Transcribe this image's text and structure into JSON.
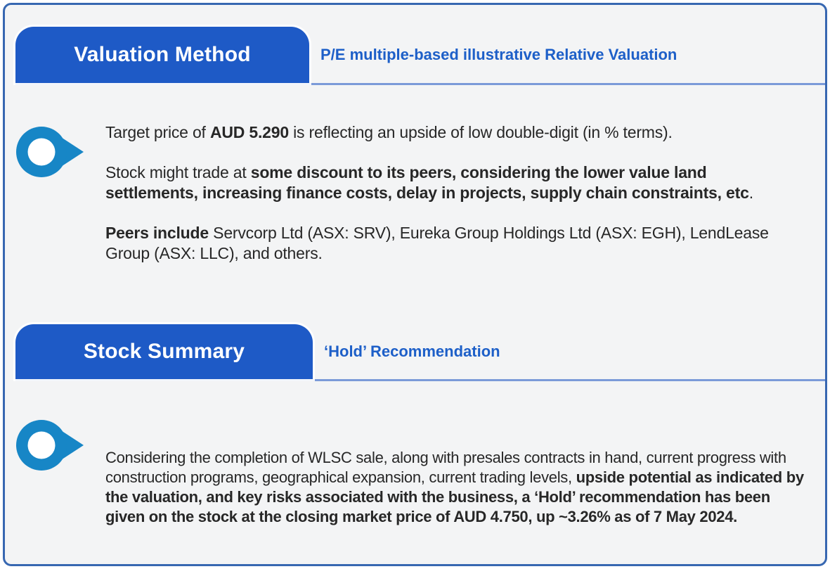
{
  "colors": {
    "frame_border": "#3767b1",
    "panel_bg": "#f3f4f5",
    "tab_bg": "#1e5ac6",
    "tab_text": "#ffffff",
    "subtitle_text": "#1d5fc8",
    "divider": "#7b9ad8",
    "icon_blue": "#1786c6",
    "body_text": "#272727"
  },
  "sections": [
    {
      "tab_label": "Valuation Method",
      "subtitle": "P/E multiple-based illustrative Relative Valuation",
      "icon": "location-pointer-icon",
      "paragraphs": [
        [
          {
            "t": "Target price of ",
            "b": false
          },
          {
            "t": "AUD 5.290",
            "b": true
          },
          {
            "t": " is reflecting an upside of low double-digit (in % terms).",
            "b": false
          }
        ],
        [
          {
            "t": "Stock might trade at ",
            "b": false
          },
          {
            "t": "some discount to its peers, considering the lower value land settlements, increasing finance costs, delay in projects, supply chain constraints, etc",
            "b": true
          },
          {
            "t": ".",
            "b": false
          }
        ],
        [
          {
            "t": "Peers include ",
            "b": true
          },
          {
            "t": "Servcorp Ltd (ASX: SRV), Eureka Group Holdings Ltd (ASX: EGH), LendLease Group (ASX: LLC), and others.",
            "b": false
          }
        ]
      ]
    },
    {
      "tab_label": "Stock Summary",
      "subtitle": "‘Hold’ Recommendation",
      "icon": "location-pointer-icon",
      "paragraphs": [
        [
          {
            "t": "Considering the completion of WLSC sale, along with presales contracts in hand, current progress with construction programs, geographical expansion, current trading levels, ",
            "b": false
          },
          {
            "t": "upside potential as indicated by the valuation, and key risks associated with the business, a ‘Hold’ recommendation has been given on the stock at the closing market price of AUD 4.750, up ~3.26% as of 7 May 2024.",
            "b": true
          }
        ]
      ]
    }
  ]
}
